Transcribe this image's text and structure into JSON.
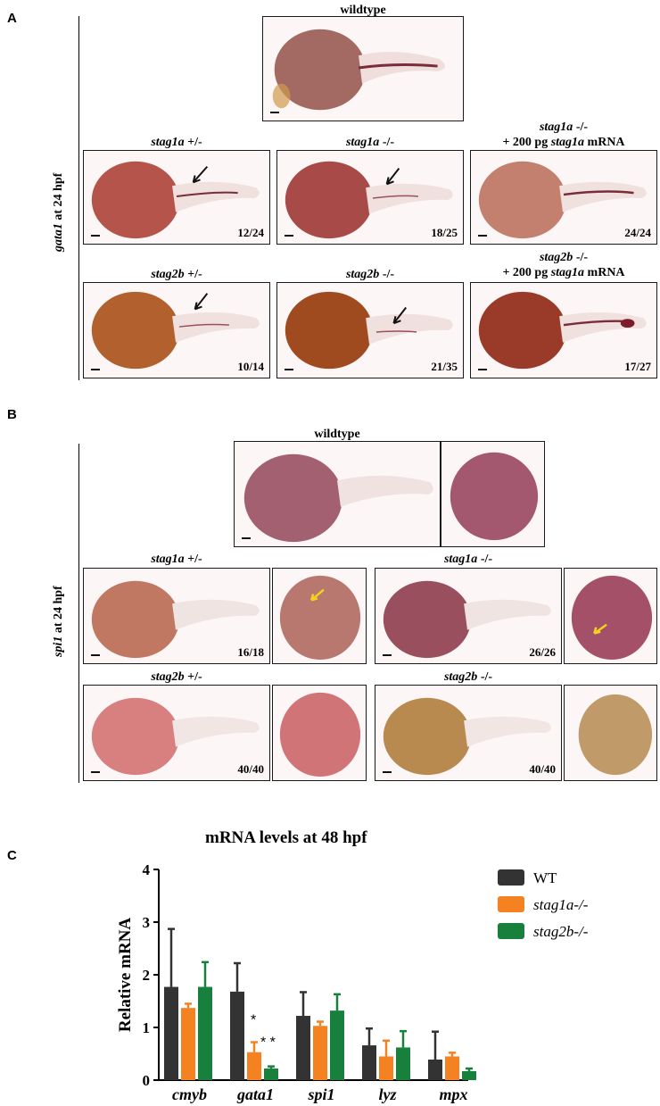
{
  "panel_a": {
    "letter": "A",
    "side_label_gene": "gata1",
    "side_label_rest": "at 24 hpf",
    "wildtype_label": "wildtype",
    "images": [
      {
        "caption_gene": "stag1a",
        "caption_geno": "+/-",
        "count": "12/24"
      },
      {
        "caption_gene": "stag1a",
        "caption_geno": "-/-",
        "count": "18/25"
      },
      {
        "caption_line1_gene": "stag1a",
        "caption_line1_geno": "-/-",
        "caption_line2_prefix": "+ 200 pg",
        "caption_line2_gene": "stag1a",
        "caption_line2_suffix": "mRNA",
        "count": "24/24"
      },
      {
        "caption_gene": "stag2b",
        "caption_geno": "+/-",
        "count": "10/14"
      },
      {
        "caption_gene": "stag2b",
        "caption_geno": "-/-",
        "count": "21/35"
      },
      {
        "caption_line1_gene": "stag2b",
        "caption_line1_geno": "-/-",
        "caption_line2_prefix": "+ 200 pg",
        "caption_line2_gene": "stag1a",
        "caption_line2_suffix": "mRNA",
        "count": "17/27"
      }
    ]
  },
  "panel_b": {
    "letter": "B",
    "side_label_gene": "spi1",
    "side_label_rest": "at 24 hpf",
    "wildtype_label": "wildtype",
    "groups": [
      {
        "caption_gene": "stag1a",
        "caption_geno": "+/-",
        "count": "16/18"
      },
      {
        "caption_gene": "stag1a",
        "caption_geno": "-/-",
        "count": "26/26"
      },
      {
        "caption_gene": "stag2b",
        "caption_geno": "+/-",
        "count": "40/40"
      },
      {
        "caption_gene": "stag2b",
        "caption_geno": "-/-",
        "count": "40/40"
      }
    ]
  },
  "panel_c": {
    "letter": "C",
    "significance": [
      "*",
      "* *"
    ]
  },
  "chart_data": {
    "type": "bar",
    "title": "mRNA levels at 48 hpf",
    "ylabel": "Relative mRNA",
    "xlabel": "",
    "ylim": [
      0,
      4
    ],
    "yticks": [
      "0",
      "1",
      "2",
      "3",
      "4"
    ],
    "categories": [
      "cmyb",
      "gata1",
      "spi1",
      "lyz",
      "mpx"
    ],
    "legend_position": "top-right",
    "series": [
      {
        "name": "WT",
        "color": "#333333",
        "values": [
          1.77,
          1.68,
          1.22,
          0.66,
          0.39
        ],
        "errors": [
          1.1,
          0.54,
          0.45,
          0.32,
          0.53
        ]
      },
      {
        "name": "stag1a-/-",
        "color": "#f58220",
        "values": [
          1.37,
          0.53,
          1.03,
          0.45,
          0.45
        ],
        "errors": [
          0.08,
          0.19,
          0.08,
          0.3,
          0.07
        ]
      },
      {
        "name": "stag2b-/-",
        "color": "#17803d",
        "values": [
          1.77,
          0.22,
          1.32,
          0.62,
          0.17
        ],
        "errors": [
          0.47,
          0.04,
          0.31,
          0.31,
          0.05
        ]
      }
    ]
  }
}
